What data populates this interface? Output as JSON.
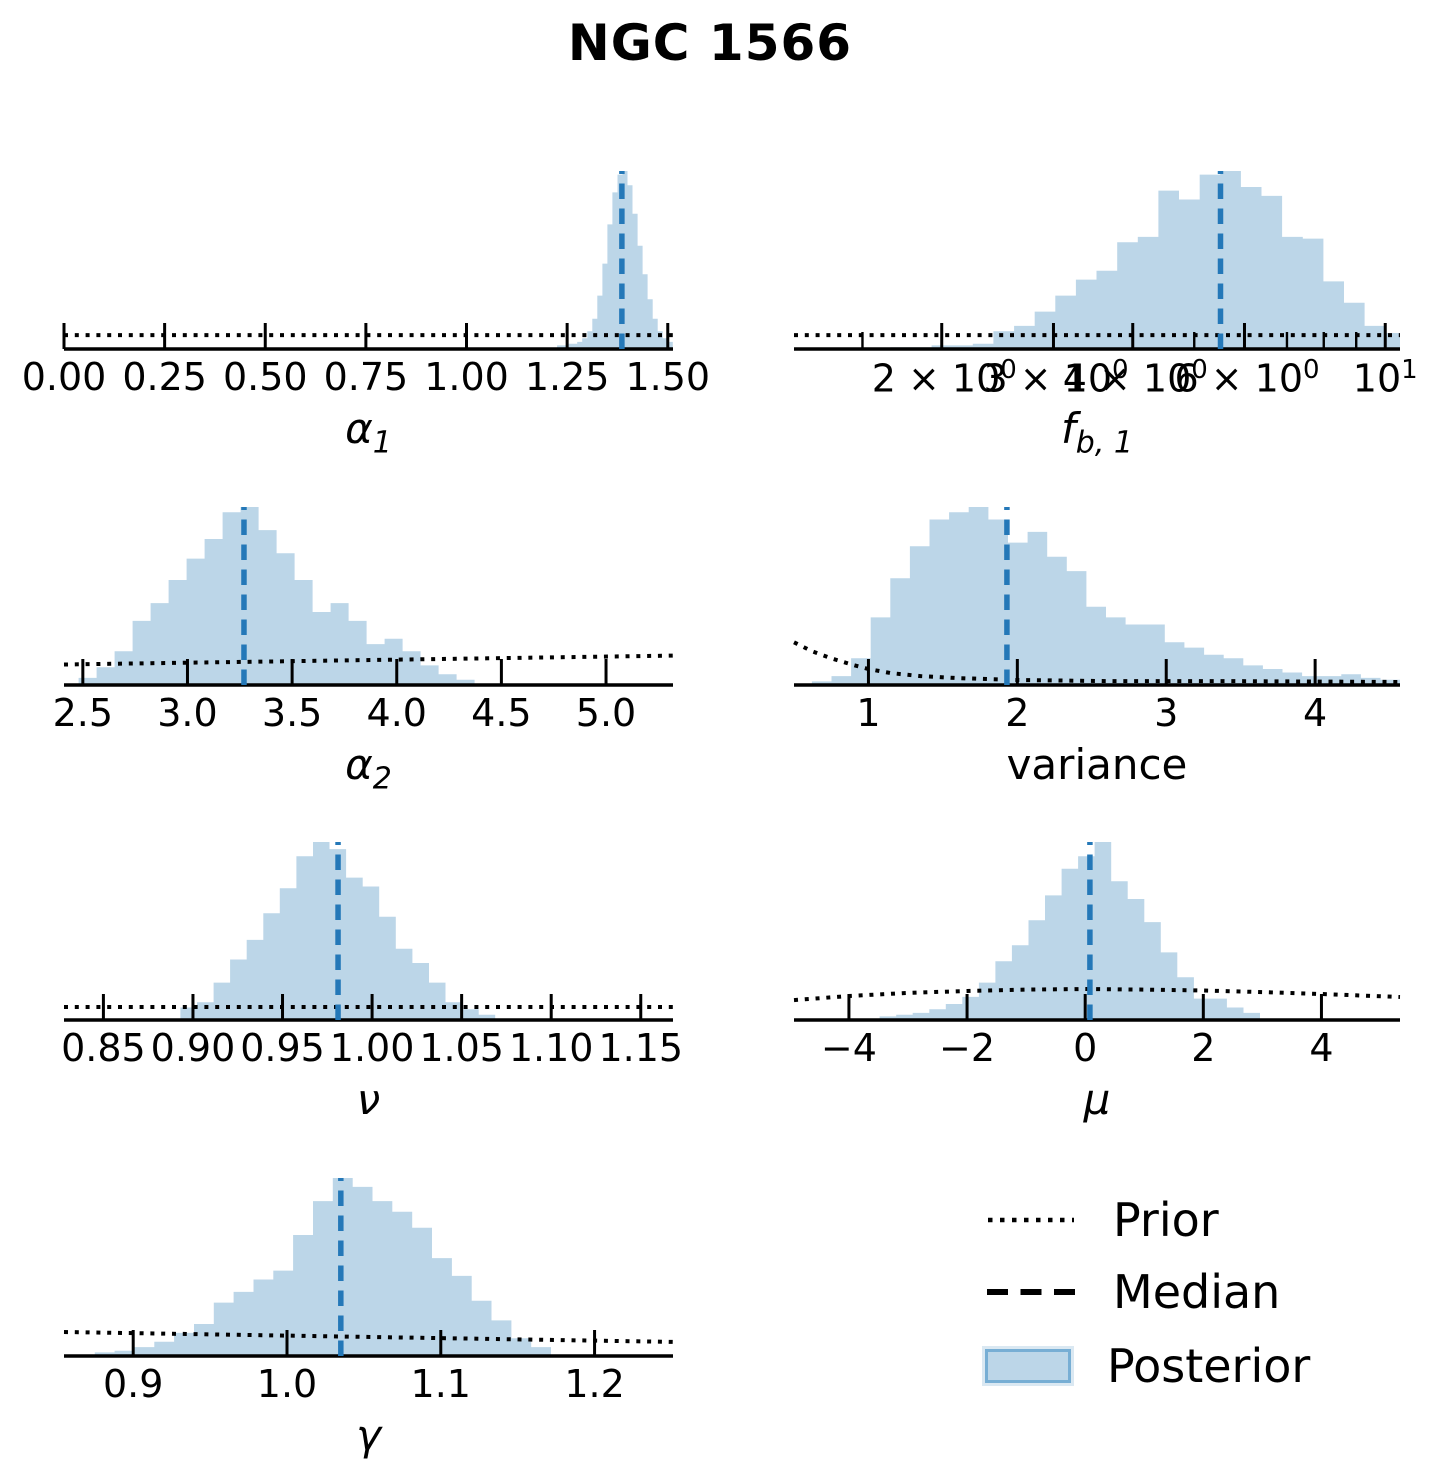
{
  "title": "NGC 1566",
  "colors": {
    "posterior_fill": "#bcd6e8",
    "posterior_edge": "#77aed4",
    "median_line": "#2478b8",
    "prior_line": "#000000",
    "axis": "#000000",
    "text": "#000000",
    "background": "#ffffff"
  },
  "legend": {
    "items": [
      {
        "label": "Prior",
        "style": "dotted-line"
      },
      {
        "label": "Median",
        "style": "dashed-line"
      },
      {
        "label": "Posterior",
        "style": "filled-patch"
      }
    ]
  },
  "chart_data": [
    {
      "id": "alpha1",
      "type": "histogram",
      "row": 0,
      "col": 0,
      "xlabel_base": "α",
      "xlabel_sub": "1",
      "xlabel_italic": true,
      "scale": "linear",
      "xlim": [
        0,
        1.513
      ],
      "ticks": [
        {
          "v": 0,
          "label": "0.00"
        },
        {
          "v": 0.25,
          "label": "0.25"
        },
        {
          "v": 0.5,
          "label": "0.50"
        },
        {
          "v": 0.75,
          "label": "0.75"
        },
        {
          "v": 1,
          "label": "1.00"
        },
        {
          "v": 1.25,
          "label": "1.25"
        },
        {
          "v": 1.5,
          "label": "1.50"
        }
      ],
      "median": 1.386,
      "bins": {
        "start": 1.225,
        "width": 0.0125,
        "heights": [
          0.02,
          0.02,
          0.03,
          0.03,
          0.04,
          0.06,
          0.1,
          0.17,
          0.3,
          0.48,
          0.7,
          0.88,
          0.98,
          1.0,
          0.92,
          0.76,
          0.58,
          0.42,
          0.28,
          0.17,
          0.1,
          0.06,
          0.04
        ]
      },
      "prior": [
        [
          0,
          0.078
        ],
        [
          1.513,
          0.078
        ]
      ]
    },
    {
      "id": "fb1",
      "type": "histogram",
      "row": 0,
      "col": 1,
      "xlabel_base": "f",
      "xlabel_sub": "b, 1",
      "xlabel_italic": true,
      "scale": "log",
      "xlim": [
        1.17,
        10.55
      ],
      "ticks": [
        {
          "v": 2,
          "label": "2 × 10",
          "sup": "0"
        },
        {
          "v": 3,
          "label": "3 × 10",
          "sup": "0"
        },
        {
          "v": 4,
          "label": "4 × 10",
          "sup": "0"
        },
        {
          "v": 6,
          "label": "6 × 10",
          "sup": "0"
        },
        {
          "v": 10,
          "label": "10",
          "sup": "1"
        }
      ],
      "minor_ticks": [
        1.5,
        5,
        7,
        8,
        9
      ],
      "median": 5.5,
      "bins": {
        "start": 0.22,
        "width": 0.0325,
        "log10_bins": true,
        "heights": [
          0.01,
          0.01,
          0.02,
          0.02,
          0.03,
          0.1,
          0.13,
          0.21,
          0.3,
          0.39,
          0.44,
          0.6,
          0.63,
          0.89,
          0.84,
          0.98,
          1.0,
          0.91,
          0.86,
          0.63,
          0.62,
          0.38,
          0.26,
          0.13,
          0.09
        ]
      },
      "prior": [
        [
          1.17,
          0.078
        ],
        [
          10.55,
          0.078
        ]
      ]
    },
    {
      "id": "alpha2",
      "type": "histogram",
      "row": 1,
      "col": 0,
      "xlabel_base": "α",
      "xlabel_sub": "2",
      "xlabel_italic": true,
      "scale": "linear",
      "xlim": [
        2.41,
        5.32
      ],
      "ticks": [
        {
          "v": 2.5,
          "label": "2.5"
        },
        {
          "v": 3.0,
          "label": "3.0"
        },
        {
          "v": 3.5,
          "label": "3.5"
        },
        {
          "v": 4.0,
          "label": "4.0"
        },
        {
          "v": 4.5,
          "label": "4.5"
        },
        {
          "v": 5.0,
          "label": "5.0"
        }
      ],
      "median": 3.27,
      "bins": {
        "start": 2.48,
        "width": 0.086,
        "heights": [
          0.04,
          0.1,
          0.19,
          0.36,
          0.46,
          0.59,
          0.71,
          0.82,
          0.97,
          1.0,
          0.87,
          0.74,
          0.59,
          0.41,
          0.46,
          0.36,
          0.23,
          0.26,
          0.19,
          0.11,
          0.06,
          0.03
        ]
      },
      "prior": [
        [
          2.41,
          0.115
        ],
        [
          5.32,
          0.165
        ]
      ]
    },
    {
      "id": "variance",
      "type": "histogram",
      "row": 1,
      "col": 1,
      "xlabel_base": "variance",
      "xlabel_sub": "",
      "xlabel_italic": false,
      "scale": "linear",
      "xlim": [
        0.5,
        4.57
      ],
      "ticks": [
        {
          "v": 1,
          "label": "1"
        },
        {
          "v": 2,
          "label": "2"
        },
        {
          "v": 3,
          "label": "3"
        },
        {
          "v": 4,
          "label": "4"
        }
      ],
      "median": 1.93,
      "bins": {
        "start": 0.62,
        "width": 0.1317,
        "heights": [
          0.02,
          0.05,
          0.15,
          0.38,
          0.6,
          0.78,
          0.93,
          0.97,
          1.0,
          0.93,
          0.8,
          0.86,
          0.72,
          0.64,
          0.44,
          0.38,
          0.34,
          0.34,
          0.24,
          0.21,
          0.17,
          0.15,
          0.11,
          0.09,
          0.07,
          0.05,
          0.05,
          0.06,
          0.04,
          0.03
        ]
      },
      "prior": [
        [
          0.5,
          0.24
        ],
        [
          0.62,
          0.19
        ],
        [
          0.75,
          0.15
        ],
        [
          0.9,
          0.112
        ],
        [
          1.0,
          0.09
        ],
        [
          1.15,
          0.067
        ],
        [
          1.35,
          0.05
        ],
        [
          1.6,
          0.039
        ],
        [
          2.0,
          0.028
        ],
        [
          2.6,
          0.022
        ],
        [
          3.4,
          0.022
        ],
        [
          4.57,
          0.017
        ]
      ]
    },
    {
      "id": "nu",
      "type": "histogram",
      "row": 2,
      "col": 0,
      "xlabel_base": "ν",
      "xlabel_sub": "",
      "xlabel_italic": true,
      "scale": "linear",
      "xlim": [
        0.828,
        1.168
      ],
      "ticks": [
        {
          "v": 0.85,
          "label": "0.85"
        },
        {
          "v": 0.9,
          "label": "0.90"
        },
        {
          "v": 0.95,
          "label": "0.95"
        },
        {
          "v": 1.0,
          "label": "1.00"
        },
        {
          "v": 1.05,
          "label": "1.05"
        },
        {
          "v": 1.1,
          "label": "1.10"
        },
        {
          "v": 1.15,
          "label": "1.15"
        }
      ],
      "median": 0.981,
      "bins": {
        "start": 0.893,
        "width": 0.00925,
        "heights": [
          0.07,
          0.1,
          0.21,
          0.34,
          0.45,
          0.6,
          0.74,
          0.92,
          1.0,
          0.96,
          0.8,
          0.75,
          0.58,
          0.4,
          0.32,
          0.21,
          0.1,
          0.06,
          0.03
        ]
      },
      "prior": [
        [
          0.828,
          0.073
        ],
        [
          1.168,
          0.073
        ]
      ]
    },
    {
      "id": "mu",
      "type": "histogram",
      "row": 2,
      "col": 1,
      "xlabel_base": "μ",
      "xlabel_sub": "",
      "xlabel_italic": true,
      "scale": "linear",
      "xlim": [
        -4.93,
        5.33
      ],
      "ticks": [
        {
          "v": -4,
          "label": "−4"
        },
        {
          "v": -2,
          "label": "−2"
        },
        {
          "v": 0,
          "label": "0"
        },
        {
          "v": 2,
          "label": "2"
        },
        {
          "v": 4,
          "label": "4"
        }
      ],
      "median": 0.08,
      "bins": {
        "start": -3.48,
        "width": 0.28,
        "heights": [
          0.02,
          0.03,
          0.04,
          0.06,
          0.09,
          0.13,
          0.21,
          0.33,
          0.42,
          0.56,
          0.7,
          0.85,
          0.92,
          1.0,
          0.78,
          0.68,
          0.55,
          0.38,
          0.24,
          0.12,
          0.12,
          0.07,
          0.04
        ]
      },
      "prior": [
        [
          -4.93,
          0.112
        ],
        [
          -4,
          0.135
        ],
        [
          -3,
          0.152
        ],
        [
          -2,
          0.163
        ],
        [
          -1,
          0.171
        ],
        [
          0,
          0.174
        ],
        [
          1,
          0.171
        ],
        [
          2,
          0.166
        ],
        [
          3,
          0.157
        ],
        [
          4,
          0.146
        ],
        [
          5.33,
          0.129
        ]
      ]
    },
    {
      "id": "gamma",
      "type": "histogram",
      "row": 3,
      "col": 0,
      "xlabel_base": "γ",
      "xlabel_sub": "",
      "xlabel_italic": true,
      "scale": "linear",
      "xlim": [
        0.855,
        1.251
      ],
      "ticks": [
        {
          "v": 0.9,
          "label": "0.9"
        },
        {
          "v": 1.0,
          "label": "1.0"
        },
        {
          "v": 1.1,
          "label": "1.1"
        },
        {
          "v": 1.2,
          "label": "1.2"
        }
      ],
      "median": 1.035,
      "bins": {
        "start": 0.875,
        "width": 0.0129,
        "heights": [
          0.02,
          0.03,
          0.05,
          0.08,
          0.13,
          0.18,
          0.3,
          0.36,
          0.43,
          0.48,
          0.68,
          0.87,
          1.0,
          0.95,
          0.87,
          0.81,
          0.72,
          0.55,
          0.45,
          0.31,
          0.2,
          0.1,
          0.05
        ]
      },
      "prior": [
        [
          0.855,
          0.135
        ],
        [
          1.251,
          0.079
        ]
      ]
    }
  ]
}
